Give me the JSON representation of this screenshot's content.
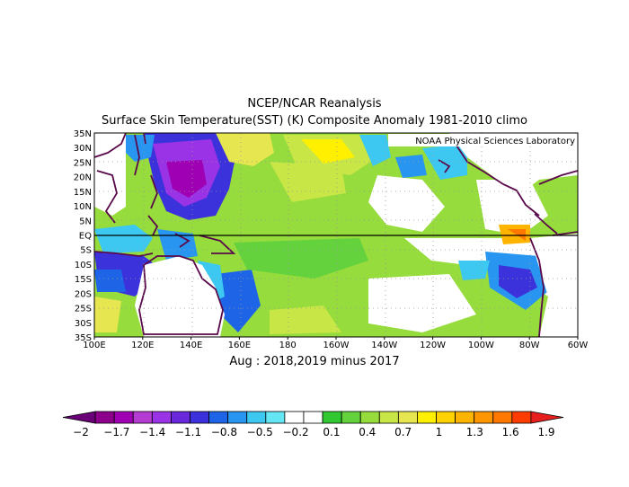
{
  "title": "NCEP/NCAR Reanalysis",
  "subtitle": "Surface Skin Temperature(SST) (K) Composite Anomaly 1981-2010 climo",
  "caption": "Aug : 2018,2019 minus 2017",
  "credit": "NOAA Physical Sciences Laboratory",
  "map": {
    "lon_range": [
      100,
      300
    ],
    "lat_range": [
      -35,
      35
    ],
    "lon_labels": [
      "100E",
      "120E",
      "140E",
      "160E",
      "180",
      "160W",
      "140W",
      "120W",
      "100W",
      "80W",
      "60W"
    ],
    "lat_labels": [
      "35N",
      "30N",
      "25N",
      "20N",
      "15N",
      "10N",
      "5N",
      "EQ",
      "5S",
      "10S",
      "15S",
      "20S",
      "25S",
      "30S",
      "35S"
    ]
  },
  "colorbar": {
    "labels": [
      "-2",
      "-1.7",
      "-1.4",
      "-1.1",
      "-0.8",
      "-0.5",
      "-0.2",
      "0.1",
      "0.4",
      "0.7",
      "1",
      "1.3",
      "1.6",
      "1.9"
    ],
    "colors": [
      "#6a0078",
      "#8c008c",
      "#a000b4",
      "#b43cd2",
      "#9a32e6",
      "#6a28dc",
      "#3c32dc",
      "#1e64e6",
      "#2896f0",
      "#3cc8f0",
      "#64e6f5",
      "#ffffff",
      "#ffffff",
      "#32c832",
      "#64d23c",
      "#96dc3c",
      "#c8e646",
      "#e6e650",
      "#fff000",
      "#ffd200",
      "#ffb400",
      "#ff9600",
      "#ff7800",
      "#ff3c00",
      "#e61e1e"
    ]
  }
}
